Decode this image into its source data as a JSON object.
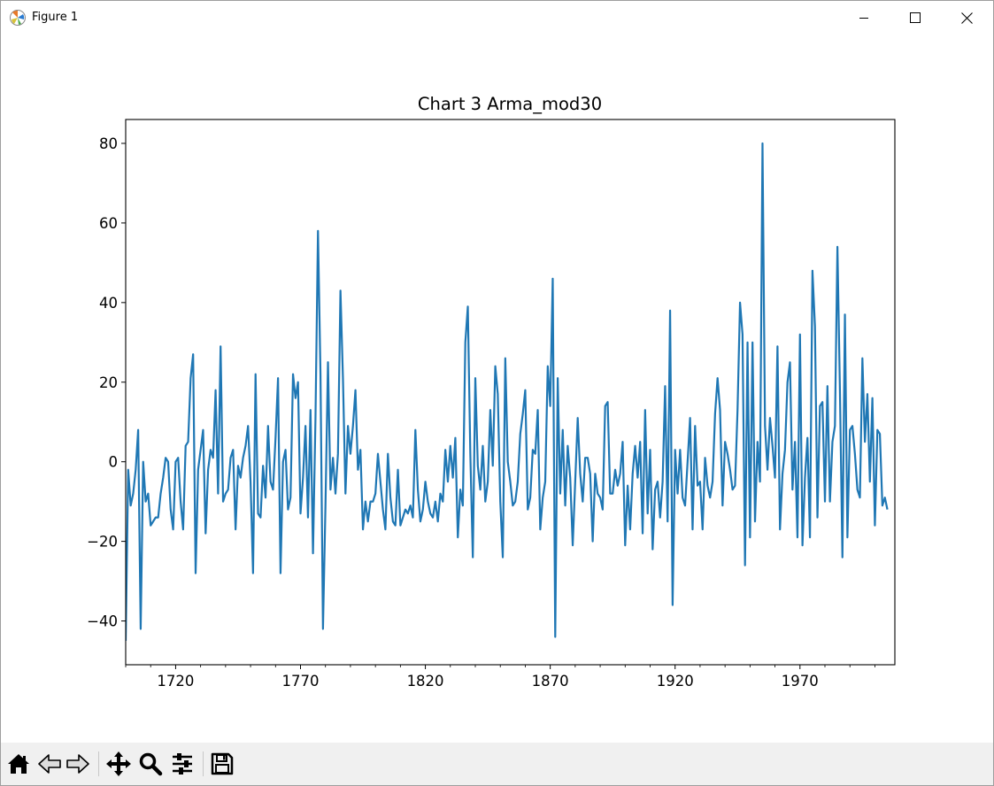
{
  "window": {
    "title": "Figure 1",
    "controls": [
      "minimize-icon",
      "maximize-icon",
      "close-icon"
    ]
  },
  "toolbar": {
    "tools": [
      "home-icon",
      "back-arrow-icon",
      "forward-arrow-icon",
      "pan-icon",
      "zoom-icon",
      "configure-subplots-icon",
      "save-icon"
    ]
  },
  "colors": {
    "line": "#1f77b4",
    "toolbar_bg": "#f0f0f0"
  },
  "chart_data": {
    "type": "line",
    "title": "Chart 3 Arma_mod30",
    "xlabel": "",
    "ylabel": "",
    "xlim": [
      1700,
      2008
    ],
    "ylim": [
      -51,
      86
    ],
    "xticks": [
      1720,
      1770,
      1820,
      1870,
      1920,
      1970
    ],
    "xminor_step": 10,
    "yticks": [
      -40,
      -20,
      0,
      20,
      40,
      60,
      80
    ],
    "grid": false,
    "series": [
      {
        "name": "",
        "color": "#1f77b4",
        "x_start": 1700,
        "x_step": 1,
        "values": [
          -45,
          -2,
          -11,
          -8,
          -2,
          8,
          -42,
          0,
          -10,
          -8,
          -16,
          -15,
          -14,
          -14,
          -8,
          -4,
          1,
          0,
          -12,
          -17,
          0,
          1,
          -10,
          -17,
          4,
          5,
          21,
          27,
          -28,
          -2,
          3,
          8,
          -18,
          -2,
          3,
          1,
          18,
          -8,
          29,
          -10,
          -8,
          -7,
          1,
          3,
          -17,
          -1,
          -4,
          1,
          4,
          9,
          -5,
          -28,
          22,
          -13,
          -14,
          -1,
          -9,
          9,
          -5,
          -7,
          6,
          21,
          -28,
          0,
          3,
          -12,
          -9,
          22,
          16,
          20,
          -13,
          -4,
          9,
          -14,
          13,
          -23,
          11,
          58,
          22,
          -42,
          -11,
          25,
          -7,
          1,
          -8,
          2,
          43,
          21,
          -8,
          9,
          2,
          9,
          18,
          -2,
          3,
          -17,
          -10,
          -15,
          -10,
          -10,
          -8,
          2,
          -5,
          -12,
          -17,
          2,
          -9,
          -15,
          -16,
          -2,
          -16,
          -14,
          -12,
          -13,
          -11,
          -14,
          8,
          -7,
          -15,
          -12,
          -5,
          -10,
          -13,
          -14,
          -10,
          -15,
          -8,
          -10,
          3,
          -5,
          4,
          -4,
          6,
          -19,
          -7,
          -11,
          30,
          39,
          2,
          -24,
          21,
          -1,
          -7,
          4,
          -10,
          -5,
          13,
          -1,
          24,
          17,
          -10,
          -24,
          26,
          0,
          -5,
          -11,
          -10,
          -5,
          7,
          12,
          18,
          -12,
          -9,
          3,
          2,
          13,
          -17,
          -9,
          -5,
          24,
          14,
          46,
          -44,
          21,
          -8,
          8,
          -11,
          4,
          -4,
          -21,
          -5,
          11,
          -3,
          -10,
          1,
          1,
          -3,
          -20,
          -3,
          -8,
          -9,
          -12,
          14,
          15,
          -8,
          -8,
          -2,
          -6,
          -3,
          5,
          -21,
          -6,
          -17,
          -3,
          4,
          -4,
          5,
          -18,
          13,
          -13,
          3,
          -22,
          -7,
          -5,
          -14,
          -5,
          19,
          -15,
          38,
          -36,
          3,
          -8,
          3,
          -9,
          -11,
          0,
          11,
          -17,
          9,
          -6,
          -5,
          -17,
          1,
          -6,
          -9,
          -5,
          12,
          21,
          13,
          -11,
          5,
          2,
          -2,
          -7,
          -6,
          13,
          40,
          32,
          -26,
          30,
          -19,
          30,
          -15,
          5,
          -5,
          80,
          9,
          -2,
          11,
          4,
          -4,
          29,
          -17,
          -3,
          3,
          20,
          25,
          -7,
          5,
          -19,
          32,
          -21,
          -4,
          6,
          -19,
          48,
          34,
          -14,
          14,
          15,
          -10,
          19,
          -10,
          5,
          9,
          54,
          18,
          -24,
          37,
          -19,
          8,
          9,
          2,
          -7,
          -9,
          26,
          5,
          17,
          -5,
          16,
          -16,
          8,
          7,
          -11,
          -9,
          -12
        ]
      }
    ]
  }
}
